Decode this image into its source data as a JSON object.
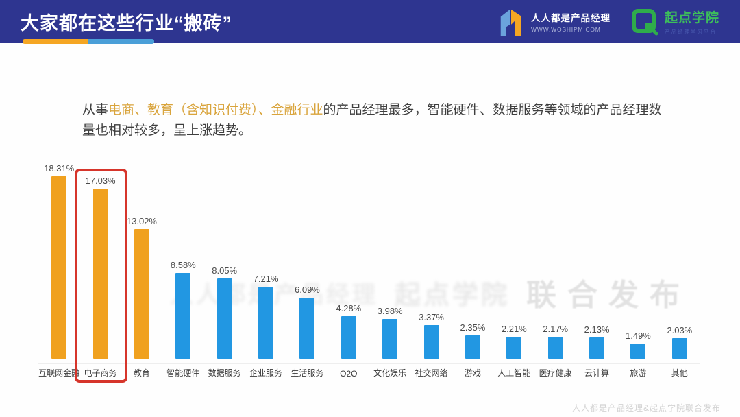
{
  "header": {
    "title": "大家都在这些行业“搬砖”",
    "logos": [
      {
        "name": "人人都是产品经理",
        "sub": "WWW.WOSHIPM.COM"
      },
      {
        "name": "起点学院",
        "sub": "产品经理学习平台"
      }
    ]
  },
  "description": {
    "prefix": "从事",
    "highlight": "电商、教育（含知识付费）、金融行业",
    "suffix": "的产品经理最多，智能硬件、数据服务等领域的产品经理数量也相对较多，呈上涨趋势。"
  },
  "chart_data": {
    "type": "bar",
    "title": "",
    "xlabel": "",
    "ylabel": "",
    "unit": "%",
    "grid": false,
    "value_labels": true,
    "ylim": [
      0,
      20
    ],
    "categories": [
      "互联网金融",
      "电子商务",
      "教育",
      "智能硬件",
      "数据服务",
      "企业服务",
      "生活服务",
      "O2O",
      "文化娱乐",
      "社交网络",
      "游戏",
      "人工智能",
      "医疗健康",
      "云计算",
      "旅游",
      "其他"
    ],
    "values": [
      18.31,
      17.03,
      13.02,
      8.58,
      8.05,
      7.21,
      6.09,
      4.28,
      3.98,
      3.37,
      2.35,
      2.21,
      2.17,
      2.13,
      1.49,
      2.03
    ],
    "orange_categories": [
      "互联网金融",
      "电子商务",
      "教育"
    ],
    "highlighted_category": "电子商务"
  },
  "watermarks": {
    "center_ghost1": "人人都是产品经理",
    "center_ghost2": "起点学院",
    "center_main": "联合发布",
    "bottom": "人人都是产品经理&起点学院联合发布"
  },
  "colors": {
    "header_bg": "#2E3590",
    "orange_bar": "#F0A11F",
    "blue_bar": "#2297E2",
    "highlight_box": "#D6352B",
    "highlight_text": "#D9A43C",
    "underline_orange": "#F5A623",
    "underline_blue": "#4A9FD8",
    "qidian_green": "#2FAC4B"
  }
}
